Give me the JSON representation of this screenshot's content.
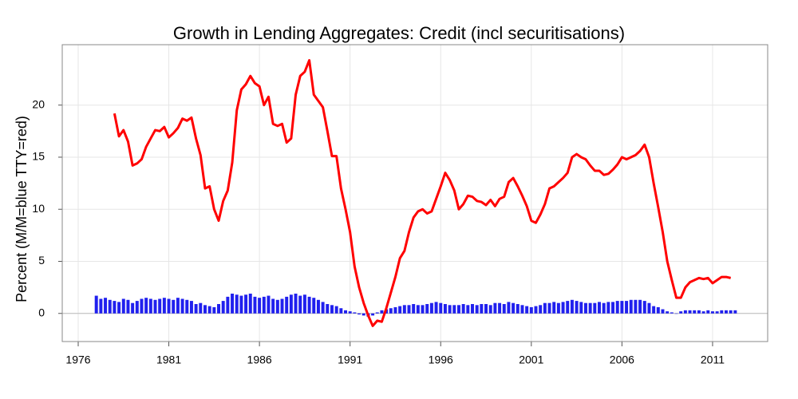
{
  "chart_data": {
    "type": "bar_line",
    "title": "Growth in Lending Aggregates: Credit (incl securitisations)",
    "y_label": "Percent (M/M=blue TTY=red)",
    "xlim": [
      1975.12,
      2014.04
    ],
    "xticks": [
      1976,
      1981,
      1986,
      1991,
      1996,
      2001,
      2006,
      2011
    ],
    "ylim": [
      -2.7,
      25.8
    ],
    "yticks": [
      0,
      5,
      10,
      15,
      20
    ],
    "grid": true,
    "x": [
      1977,
      1977.25,
      1977.5,
      1977.75,
      1978,
      1978.25,
      1978.5,
      1978.75,
      1979,
      1979.25,
      1979.5,
      1979.75,
      1980,
      1980.25,
      1980.5,
      1980.75,
      1981,
      1981.25,
      1981.5,
      1981.75,
      1982,
      1982.25,
      1982.5,
      1982.75,
      1983,
      1983.25,
      1983.5,
      1983.75,
      1984,
      1984.25,
      1984.5,
      1984.75,
      1985,
      1985.25,
      1985.5,
      1985.75,
      1986,
      1986.25,
      1986.5,
      1986.75,
      1987,
      1987.25,
      1987.5,
      1987.75,
      1988,
      1988.25,
      1988.5,
      1988.75,
      1989,
      1989.25,
      1989.5,
      1989.75,
      1990,
      1990.25,
      1990.5,
      1990.75,
      1991,
      1991.25,
      1991.5,
      1991.75,
      1992,
      1992.25,
      1992.5,
      1992.75,
      1993,
      1993.25,
      1993.5,
      1993.75,
      1994,
      1994.25,
      1994.5,
      1994.75,
      1995,
      1995.25,
      1995.5,
      1995.75,
      1996,
      1996.25,
      1996.5,
      1996.75,
      1997,
      1997.25,
      1997.5,
      1997.75,
      1998,
      1998.25,
      1998.5,
      1998.75,
      1999,
      1999.25,
      1999.5,
      1999.75,
      2000,
      2000.25,
      2000.5,
      2000.75,
      2001,
      2001.25,
      2001.5,
      2001.75,
      2002,
      2002.25,
      2002.5,
      2002.75,
      2003,
      2003.25,
      2003.5,
      2003.75,
      2004,
      2004.25,
      2004.5,
      2004.75,
      2005,
      2005.25,
      2005.5,
      2005.75,
      2006,
      2006.25,
      2006.5,
      2006.75,
      2007,
      2007.25,
      2007.5,
      2007.75,
      2008,
      2008.25,
      2008.5,
      2008.75,
      2009,
      2009.25,
      2009.5,
      2009.75,
      2010,
      2010.25,
      2010.5,
      2010.75,
      2011,
      2011.25,
      2011.5,
      2011.75,
      2012,
      2012.25
    ],
    "series": [
      {
        "type": "bar",
        "color": "#2020ee",
        "values": [
          1.7,
          1.4,
          1.5,
          1.3,
          1.2,
          1.1,
          1.4,
          1.3,
          1.0,
          1.2,
          1.4,
          1.5,
          1.4,
          1.3,
          1.4,
          1.5,
          1.4,
          1.3,
          1.5,
          1.4,
          1.3,
          1.2,
          0.9,
          1.0,
          0.8,
          0.7,
          0.6,
          0.9,
          1.2,
          1.6,
          1.9,
          1.8,
          1.7,
          1.8,
          1.9,
          1.6,
          1.5,
          1.6,
          1.7,
          1.4,
          1.3,
          1.4,
          1.6,
          1.8,
          1.9,
          1.7,
          1.8,
          1.6,
          1.5,
          1.3,
          1.1,
          0.9,
          0.8,
          0.7,
          0.5,
          0.3,
          0.2,
          0.1,
          -0.1,
          -0.2,
          -0.3,
          -0.2,
          0.1,
          0.3,
          0.4,
          0.5,
          0.6,
          0.7,
          0.8,
          0.8,
          0.9,
          0.8,
          0.8,
          0.9,
          1.0,
          1.1,
          1.0,
          0.9,
          0.8,
          0.8,
          0.8,
          0.9,
          0.8,
          0.9,
          0.8,
          0.9,
          0.9,
          0.8,
          1.0,
          1.0,
          0.9,
          1.1,
          1.0,
          0.9,
          0.8,
          0.7,
          0.6,
          0.7,
          0.8,
          1.0,
          1.0,
          1.1,
          1.0,
          1.1,
          1.2,
          1.3,
          1.2,
          1.1,
          1.0,
          1.0,
          1.0,
          1.1,
          1.0,
          1.1,
          1.1,
          1.2,
          1.2,
          1.2,
          1.3,
          1.3,
          1.3,
          1.2,
          1.0,
          0.7,
          0.6,
          0.4,
          0.2,
          0.1,
          0.0,
          0.2,
          0.3,
          0.3,
          0.3,
          0.3,
          0.2,
          0.3,
          0.2,
          0.2,
          0.3,
          0.3,
          0.3,
          0.3
        ]
      },
      {
        "type": "line",
        "color": "#ff0000",
        "values": [
          null,
          null,
          null,
          null,
          19.2,
          17.0,
          17.6,
          16.5,
          14.2,
          14.4,
          14.8,
          16.0,
          16.8,
          17.6,
          17.5,
          17.9,
          16.9,
          17.3,
          17.8,
          18.7,
          18.5,
          18.8,
          16.8,
          15.2,
          12.0,
          12.2,
          10.0,
          8.9,
          10.8,
          11.8,
          14.5,
          19.5,
          21.5,
          22.0,
          22.8,
          22.1,
          21.8,
          20.0,
          20.8,
          18.2,
          18.0,
          18.2,
          16.4,
          16.8,
          21.0,
          22.8,
          23.2,
          24.3,
          21.0,
          20.4,
          19.8,
          17.5,
          15.1,
          15.1,
          12.0,
          10.0,
          7.8,
          4.5,
          2.5,
          1.0,
          -0.2,
          -1.2,
          -0.7,
          -0.8,
          0.5,
          2.0,
          3.5,
          5.3,
          6.0,
          7.8,
          9.2,
          9.8,
          10.0,
          9.6,
          9.8,
          11.0,
          12.2,
          13.5,
          12.8,
          11.8,
          10.0,
          10.5,
          11.3,
          11.2,
          10.8,
          10.7,
          10.4,
          10.9,
          10.3,
          11.0,
          11.2,
          12.6,
          13.0,
          12.2,
          11.3,
          10.3,
          8.9,
          8.7,
          9.5,
          10.5,
          12.0,
          12.2,
          12.6,
          13.0,
          13.5,
          15.0,
          15.3,
          15.0,
          14.8,
          14.2,
          13.7,
          13.7,
          13.3,
          13.4,
          13.8,
          14.3,
          15.0,
          14.8,
          15.0,
          15.2,
          15.6,
          16.2,
          15.0,
          12.5,
          10.2,
          7.8,
          5.0,
          3.2,
          1.5,
          1.5,
          2.5,
          3.0,
          3.2,
          3.4,
          3.3,
          3.4,
          2.9,
          3.2,
          3.5,
          3.5,
          3.4,
          null
        ]
      }
    ]
  }
}
